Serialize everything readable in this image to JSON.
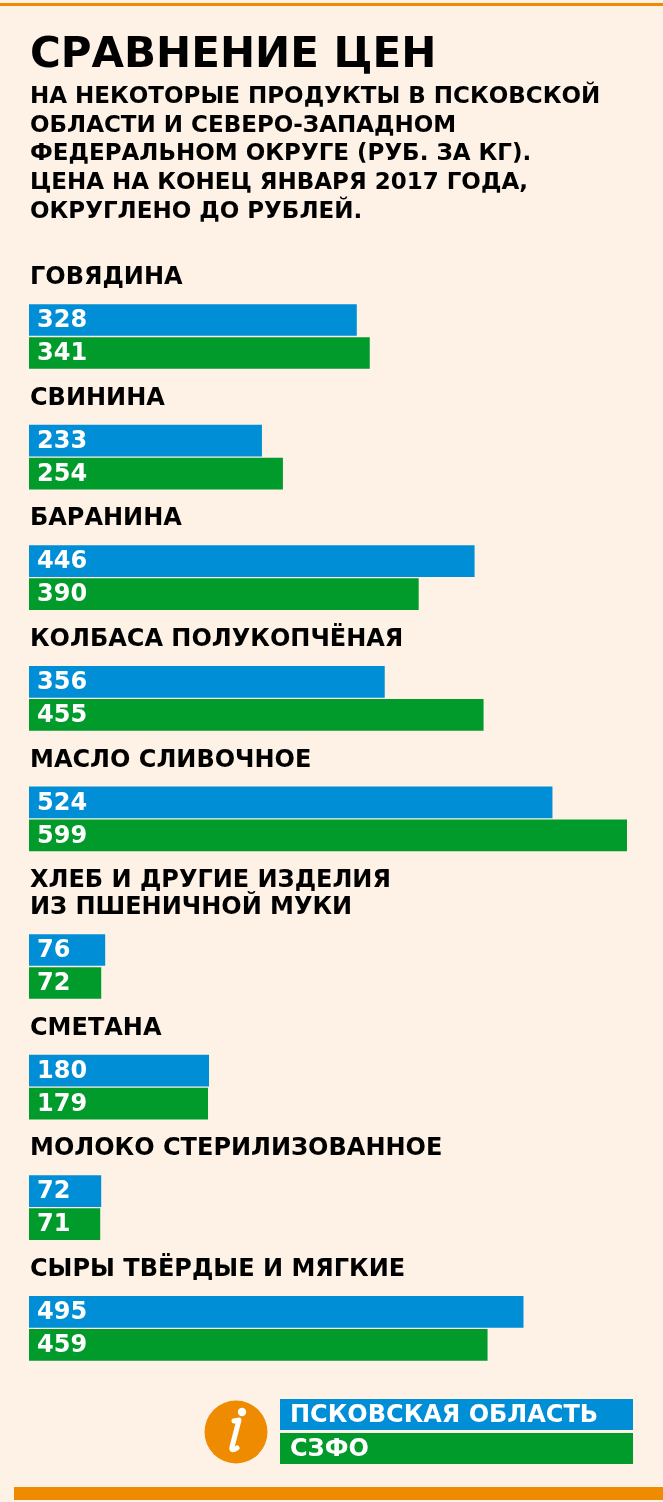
{
  "chart_data": {
    "type": "bar",
    "orientation": "horizontal",
    "title": "СРАВНЕНИЕ ЦЕН",
    "subtitle": "НА НЕКОТОРЫЕ ПРОДУКТЫ В ПСКОВСКОЙ ОБЛАСТИ И СЕВЕРО-ЗАПАДНОМ ФЕДЕРАЛЬНОМ ОКРУГЕ (РУБ. ЗА КГ). ЦЕНА НА КОНЕЦ ЯНВАРЯ 2017 ГОДА, ОКРУГЛЕНО ДО РУБЛЕЙ.",
    "categories": [
      "ГОВЯДИНА",
      "СВИНИНА",
      "БАРАНИНА",
      "КОЛБАСА ПОЛУКОПЧЁНАЯ",
      "МАСЛО СЛИВОЧНОЕ",
      "ХЛЕБ И ДРУГИЕ ИЗДЕЛИЯ ИЗ ПШЕНИЧНОЙ МУКИ",
      "СМЕТАНА",
      "МОЛОКО СТЕРИЛИЗОВАННОЕ",
      "СЫРЫ ТВЁРДЫЕ И МЯГКИЕ"
    ],
    "series": [
      {
        "name": "ПСКОВСКАЯ ОБЛАСТЬ",
        "color": "#008ed6",
        "values": [
          328,
          233,
          446,
          356,
          524,
          76,
          180,
          72,
          495
        ]
      },
      {
        "name": "СЗФО",
        "color": "#009b2b",
        "values": [
          341,
          254,
          390,
          455,
          599,
          72,
          179,
          71,
          459
        ]
      }
    ],
    "data_labels": true,
    "tick_labels": "y",
    "legend": "bottom right"
  }
}
